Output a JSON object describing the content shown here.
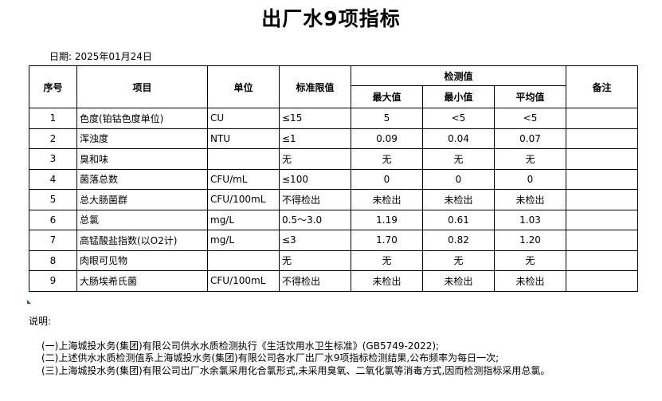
{
  "title": "出厂水9项指标",
  "date": "日期: 2025年01月24日",
  "headers": {
    "no": "序号",
    "item": "项目",
    "unit": "单位",
    "limit": "标准限值",
    "measured": "检测值",
    "max": "最大值",
    "min": "最小值",
    "avg": "平均值",
    "remark": "备注"
  },
  "rows": [
    {
      "no": "1",
      "item": "色度(铂钴色度单位)",
      "unit": "CU",
      "limit": "≤15",
      "max": "5",
      "min": "<5",
      "avg": "<5",
      "remark": ""
    },
    {
      "no": "2",
      "item": "浑浊度",
      "unit": "NTU",
      "limit": "≤1",
      "max": "0.09",
      "min": "0.04",
      "avg": "0.07",
      "remark": ""
    },
    {
      "no": "3",
      "item": "臭和味",
      "unit": "",
      "limit": "无",
      "max": "无",
      "min": "无",
      "avg": "无",
      "remark": ""
    },
    {
      "no": "4",
      "item": "菌落总数",
      "unit": "CFU/mL",
      "limit": "≤100",
      "max": "0",
      "min": "0",
      "avg": "0",
      "remark": ""
    },
    {
      "no": "5",
      "item": "总大肠菌群",
      "unit": "CFU/100mL",
      "limit": "不得检出",
      "max": "未检出",
      "min": "未检出",
      "avg": "未检出",
      "remark": ""
    },
    {
      "no": "6",
      "item": "总氯",
      "unit": "mg/L",
      "limit": "0.5～3.0",
      "max": "1.19",
      "min": "0.61",
      "avg": "1.03",
      "remark": ""
    },
    {
      "no": "7",
      "item": "高锰酸盐指数(以O2计)",
      "unit": "mg/L",
      "limit": "≤3",
      "max": "1.70",
      "min": "0.82",
      "avg": "1.20",
      "remark": ""
    },
    {
      "no": "8",
      "item": "肉眼可见物",
      "unit": "",
      "limit": "无",
      "max": "无",
      "min": "无",
      "avg": "无",
      "remark": ""
    },
    {
      "no": "9",
      "item": "大肠埃希氏菌",
      "unit": "CFU/100mL",
      "limit": "不得检出",
      "max": "未检出",
      "min": "未检出",
      "avg": "未检出",
      "remark": ""
    }
  ],
  "notes": {
    "label": "说明:",
    "lines": [
      "(一)上海城投水务(集团)有限公司供水水质检测执行《生活饮用水卫生标准》(GB5749-2022);",
      "(二)上述供水水质检测值系上海城投水务(集团)有限公司各水厂出厂水9项指标检测结果,公布频率为每日一次;",
      "(三)上海城投水务(集团)有限公司出厂水余氯采用化合氯形式,未采用臭氧、二氧化氯等消毒方式,因而检测指标采用总氯。"
    ]
  }
}
